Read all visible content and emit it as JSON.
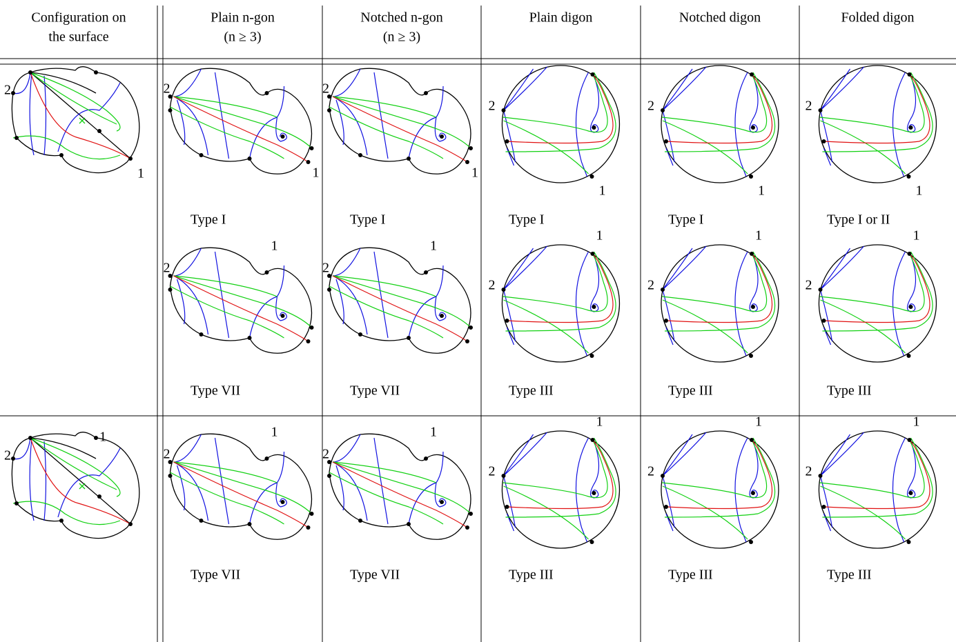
{
  "header": [
    [
      "Configuration on",
      "the surface"
    ],
    [
      "Plain n-gon",
      "(n ≥ 3)"
    ],
    [
      "Notched n-gon",
      "(n ≥ 3)"
    ],
    [
      "Plain digon"
    ],
    [
      "Notched digon"
    ],
    [
      "Folded digon"
    ]
  ],
  "rows": [
    [
      [
        {
          "labels": [
            "2",
            "1"
          ]
        }
      ],
      [
        {
          "labels": [
            "2",
            "1"
          ],
          "caption": "Type I"
        },
        {
          "labels": [
            "2",
            "1"
          ],
          "caption": "Type VII"
        }
      ],
      [
        {
          "labels": [
            "2",
            "1"
          ],
          "caption": "Type I"
        },
        {
          "labels": [
            "2",
            "1"
          ],
          "caption": "Type VII"
        }
      ],
      [
        {
          "labels": [
            "2",
            "1"
          ],
          "caption": "Type I"
        },
        {
          "labels": [
            "2",
            "1"
          ],
          "caption": "Type III"
        }
      ],
      [
        {
          "labels": [
            "2",
            "1"
          ],
          "caption": "Type I"
        },
        {
          "labels": [
            "2",
            "1"
          ],
          "caption": "Type III"
        }
      ],
      [
        {
          "labels": [
            "2",
            "1"
          ],
          "caption": "Type I or II"
        },
        {
          "labels": [
            "2",
            "1"
          ],
          "caption": "Type III"
        }
      ]
    ],
    [
      [
        {
          "labels": [
            "2",
            "1"
          ]
        }
      ],
      [
        {
          "labels": [
            "2",
            "1"
          ],
          "caption": "Type VII"
        }
      ],
      [
        {
          "labels": [
            "2",
            "1"
          ],
          "caption": "Type VII"
        }
      ],
      [
        {
          "labels": [
            "2",
            "1"
          ],
          "caption": "Type III"
        }
      ],
      [
        {
          "labels": [
            "2",
            "1"
          ],
          "caption": "Type III"
        }
      ],
      [
        {
          "labels": [
            "2",
            "1"
          ],
          "caption": "Type III"
        }
      ]
    ]
  ]
}
